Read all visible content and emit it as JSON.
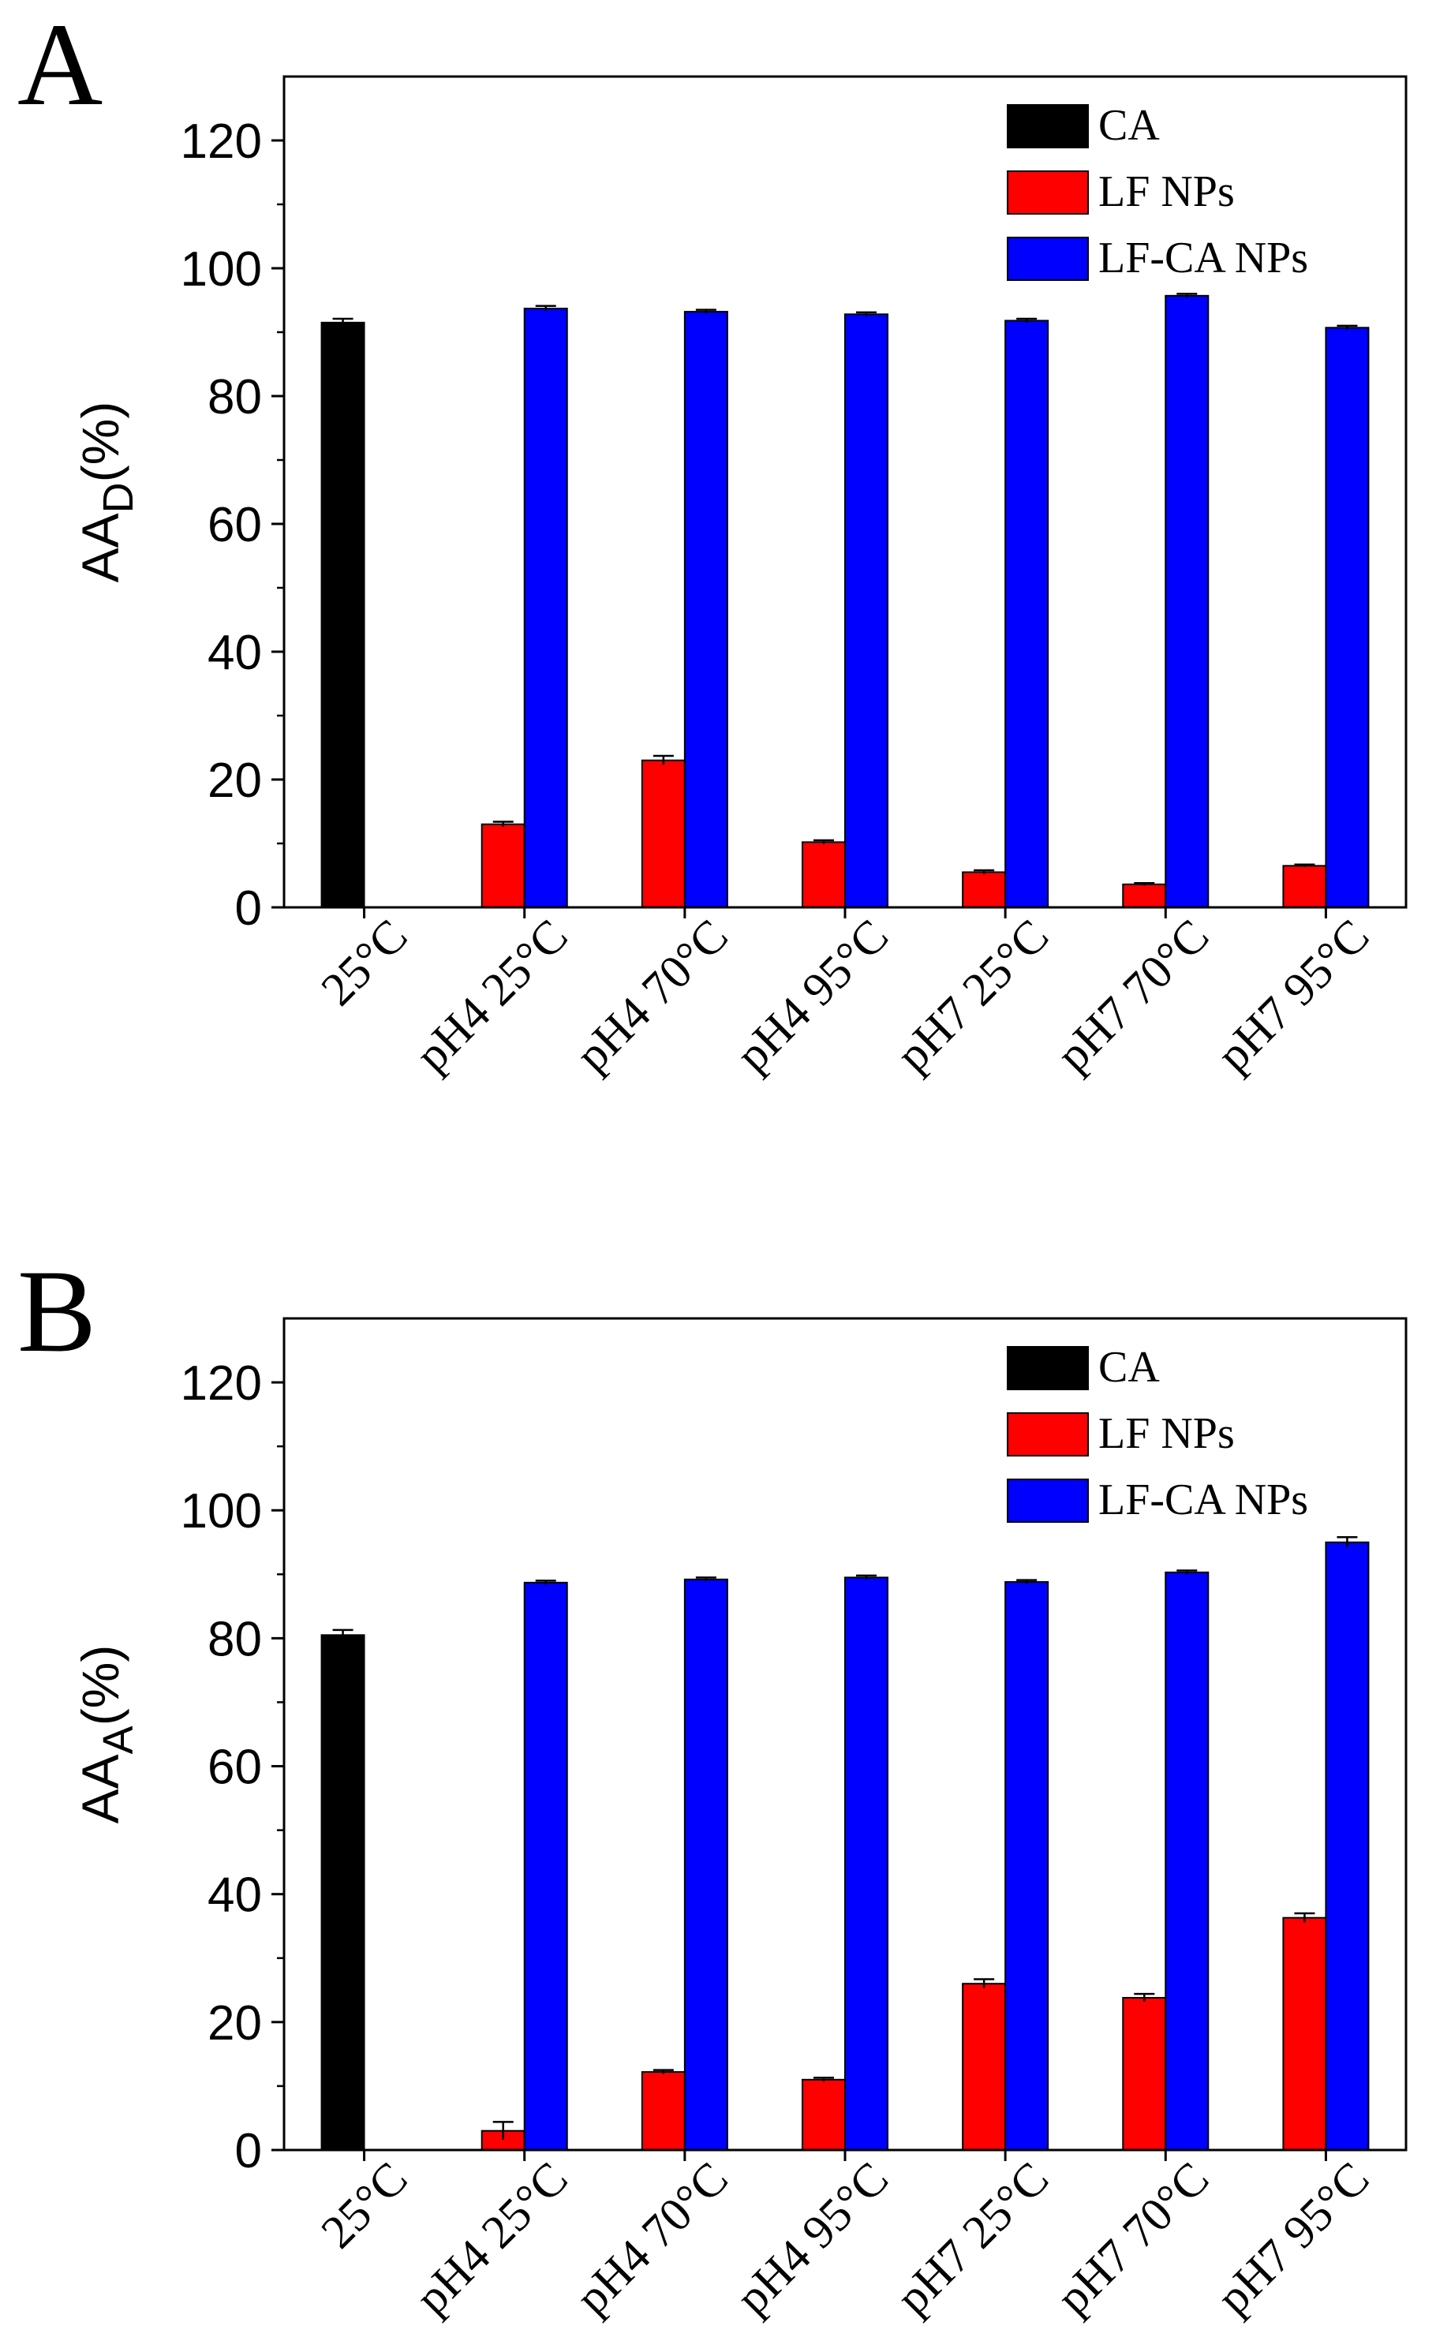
{
  "chart_data": [
    {
      "type": "bar",
      "panel_label": "A",
      "ylabel": {
        "main": "AA",
        "subscript": "D",
        "suffix": "(%)"
      },
      "ylim": [
        0,
        130
      ],
      "yticks": [
        "0",
        "20",
        "40",
        "60",
        "80",
        "100",
        "120"
      ],
      "ytick_values": [
        0,
        20,
        40,
        60,
        80,
        100,
        120
      ],
      "categories": [
        "25°C",
        "pH4 25°C",
        "pH4 70°C",
        "pH4 95°C",
        "pH7 25°C",
        "pH7 70°C",
        "pH7 95°C"
      ],
      "legend_position": "top-right",
      "series": [
        {
          "name": "CA",
          "color": "#000000",
          "values": [
            91.5,
            null,
            null,
            null,
            null,
            null,
            null
          ],
          "errors": [
            0.6,
            null,
            null,
            null,
            null,
            null,
            null
          ]
        },
        {
          "name": "LF NPs",
          "color": "#ff0000",
          "values": [
            null,
            13.0,
            23.0,
            10.2,
            5.5,
            3.6,
            6.5
          ],
          "errors": [
            null,
            0.4,
            0.7,
            0.3,
            0.3,
            0.2,
            0.2
          ]
        },
        {
          "name": "LF-CA NPs",
          "color": "#0000ff",
          "values": [
            null,
            93.7,
            93.2,
            92.8,
            91.8,
            95.7,
            90.7
          ],
          "errors": [
            null,
            0.4,
            0.3,
            0.3,
            0.3,
            0.3,
            0.3
          ]
        }
      ]
    },
    {
      "type": "bar",
      "panel_label": "B",
      "ylabel": {
        "main": "AA",
        "subscript": "A",
        "suffix": "(%)"
      },
      "ylim": [
        0,
        130
      ],
      "yticks": [
        "0",
        "20",
        "40",
        "60",
        "80",
        "100",
        "120"
      ],
      "ytick_values": [
        0,
        20,
        40,
        60,
        80,
        100,
        120
      ],
      "categories": [
        "25°C",
        "pH4 25°C",
        "pH4 70°C",
        "pH4 95°C",
        "pH7 25°C",
        "pH7 70°C",
        "pH7 95°C"
      ],
      "legend_position": "top-right",
      "series": [
        {
          "name": "CA",
          "color": "#000000",
          "values": [
            80.5,
            null,
            null,
            null,
            null,
            null,
            null
          ],
          "errors": [
            0.8,
            null,
            null,
            null,
            null,
            null,
            null
          ]
        },
        {
          "name": "LF NPs",
          "color": "#ff0000",
          "values": [
            null,
            3.0,
            12.2,
            11.0,
            26.0,
            23.8,
            36.3
          ],
          "errors": [
            null,
            1.4,
            0.3,
            0.3,
            0.7,
            0.6,
            0.7
          ]
        },
        {
          "name": "LF-CA NPs",
          "color": "#0000ff",
          "values": [
            null,
            88.7,
            89.2,
            89.5,
            88.8,
            90.3,
            95.0
          ],
          "errors": [
            null,
            0.3,
            0.3,
            0.3,
            0.3,
            0.3,
            0.8
          ]
        }
      ]
    }
  ]
}
